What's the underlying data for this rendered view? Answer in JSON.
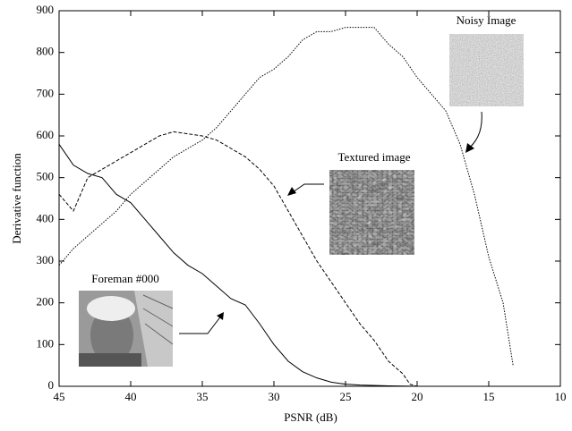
{
  "chart_data": {
    "type": "line",
    "xlabel": "PSNR (dB)",
    "ylabel": "Derivative function",
    "xlim": [
      45,
      10
    ],
    "ylim": [
      0,
      900
    ],
    "xticks": [
      45,
      40,
      35,
      30,
      25,
      20,
      15,
      10
    ],
    "yticks": [
      0,
      100,
      200,
      300,
      400,
      500,
      600,
      700,
      800,
      900
    ],
    "series": [
      {
        "name": "Foreman #000",
        "color": "#000000",
        "dash": "solid",
        "x": [
          45,
          44,
          43,
          42,
          41,
          40,
          39,
          38,
          37,
          36,
          35,
          34,
          33,
          32,
          31,
          30,
          29,
          28,
          27,
          26,
          25,
          24,
          22,
          20,
          15
        ],
        "values": [
          580,
          530,
          510,
          500,
          460,
          440,
          400,
          360,
          320,
          290,
          270,
          240,
          210,
          195,
          150,
          100,
          60,
          35,
          20,
          10,
          5,
          3,
          1,
          0,
          0
        ]
      },
      {
        "name": "Textured image",
        "color": "#000000",
        "dash": "dashed",
        "x": [
          45,
          44,
          43,
          42,
          41,
          40,
          39,
          38,
          37,
          36,
          35,
          34,
          33,
          32,
          31,
          30,
          29,
          28,
          27,
          26,
          25,
          24,
          23,
          22,
          21,
          20.5,
          20
        ],
        "values": [
          460,
          420,
          500,
          520,
          540,
          560,
          580,
          600,
          610,
          605,
          600,
          590,
          570,
          550,
          520,
          480,
          420,
          360,
          300,
          250,
          200,
          150,
          110,
          60,
          30,
          5,
          0
        ]
      },
      {
        "name": "Noisy Image",
        "color": "#000000",
        "dash": "dotted",
        "x": [
          45,
          44,
          43,
          42,
          41,
          40,
          39,
          38,
          37,
          36,
          35,
          34,
          33,
          32,
          31,
          30,
          29,
          28,
          27,
          26,
          25,
          24,
          23,
          22,
          21,
          20,
          19,
          18,
          17,
          16,
          15,
          14,
          13.3
        ],
        "values": [
          290,
          330,
          360,
          390,
          420,
          460,
          490,
          520,
          550,
          570,
          590,
          620,
          660,
          700,
          740,
          760,
          790,
          830,
          850,
          850,
          860,
          860,
          860,
          820,
          790,
          740,
          700,
          660,
          580,
          460,
          310,
          200,
          50
        ]
      }
    ]
  }
}
